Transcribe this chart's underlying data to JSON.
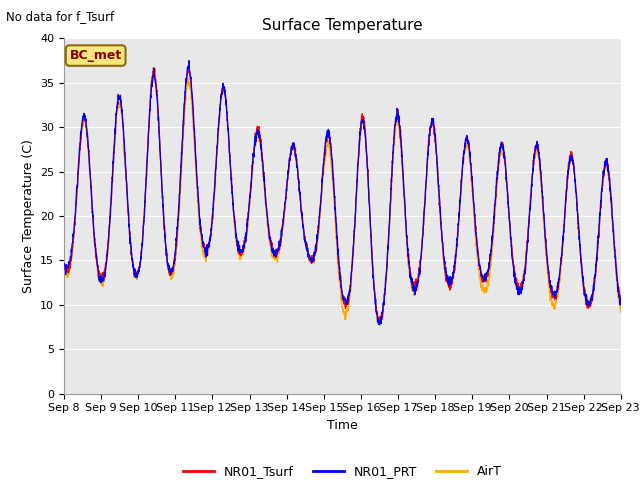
{
  "title": "Surface Temperature",
  "xlabel": "Time",
  "ylabel": "Surface Temperature (C)",
  "note": "No data for f_Tsurf",
  "bc_label": "BC_met",
  "ylim": [
    0,
    40
  ],
  "yticks": [
    0,
    5,
    10,
    15,
    20,
    25,
    30,
    35,
    40
  ],
  "xtick_labels": [
    "Sep 8",
    "Sep 9",
    "Sep 10",
    "Sep 11",
    "Sep 12",
    "Sep 13",
    "Sep 14",
    "Sep 15",
    "Sep 16",
    "Sep 17",
    "Sep 18",
    "Sep 19",
    "Sep 20",
    "Sep 21",
    "Sep 22",
    "Sep 23"
  ],
  "legend_labels": [
    "NR01_Tsurf",
    "NR01_PRT",
    "AirT"
  ],
  "line_colors": [
    "#ff0000",
    "#0000ff",
    "#ffaa00"
  ],
  "background_color": "#e8e8e8",
  "title_fontsize": 11,
  "axis_fontsize": 9,
  "tick_fontsize": 8,
  "legend_fontsize": 9,
  "day_peaks": [
    30,
    30,
    34,
    35.5,
    35,
    32,
    27,
    27,
    29,
    30.5,
    30,
    29,
    27,
    27,
    27,
    25
  ],
  "day_troughs": [
    13,
    12,
    12,
    12,
    15,
    15,
    15,
    15,
    9,
    6.5,
    11,
    11,
    12,
    11,
    10,
    9
  ],
  "peak_phase": 0.58,
  "trough_phase": 0.21
}
